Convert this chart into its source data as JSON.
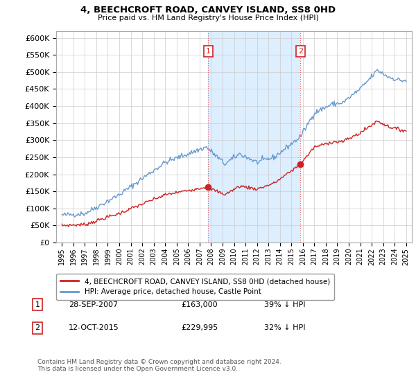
{
  "title": "4, BEECHCROFT ROAD, CANVEY ISLAND, SS8 0HD",
  "subtitle": "Price paid vs. HM Land Registry's House Price Index (HPI)",
  "ylim": [
    0,
    620000
  ],
  "yticks": [
    0,
    50000,
    100000,
    150000,
    200000,
    250000,
    300000,
    350000,
    400000,
    450000,
    500000,
    550000,
    600000
  ],
  "ytick_labels": [
    "£0",
    "£50K",
    "£100K",
    "£150K",
    "£200K",
    "£250K",
    "£300K",
    "£350K",
    "£400K",
    "£450K",
    "£500K",
    "£550K",
    "£600K"
  ],
  "hpi_color": "#6699cc",
  "price_color": "#cc2222",
  "shade_color": "#ddeeff",
  "transaction1_date": 2007.75,
  "transaction1_price": 163000,
  "transaction2_date": 2015.79,
  "transaction2_price": 229995,
  "legend_property": "4, BEECHCROFT ROAD, CANVEY ISLAND, SS8 0HD (detached house)",
  "legend_hpi": "HPI: Average price, detached house, Castle Point",
  "table_row1": [
    "1",
    "28-SEP-2007",
    "£163,000",
    "39% ↓ HPI"
  ],
  "table_row2": [
    "2",
    "12-OCT-2015",
    "£229,995",
    "32% ↓ HPI"
  ],
  "footnote": "Contains HM Land Registry data © Crown copyright and database right 2024.\nThis data is licensed under the Open Government Licence v3.0.",
  "grid_color": "#cccccc",
  "vline_color": "#dd6666"
}
